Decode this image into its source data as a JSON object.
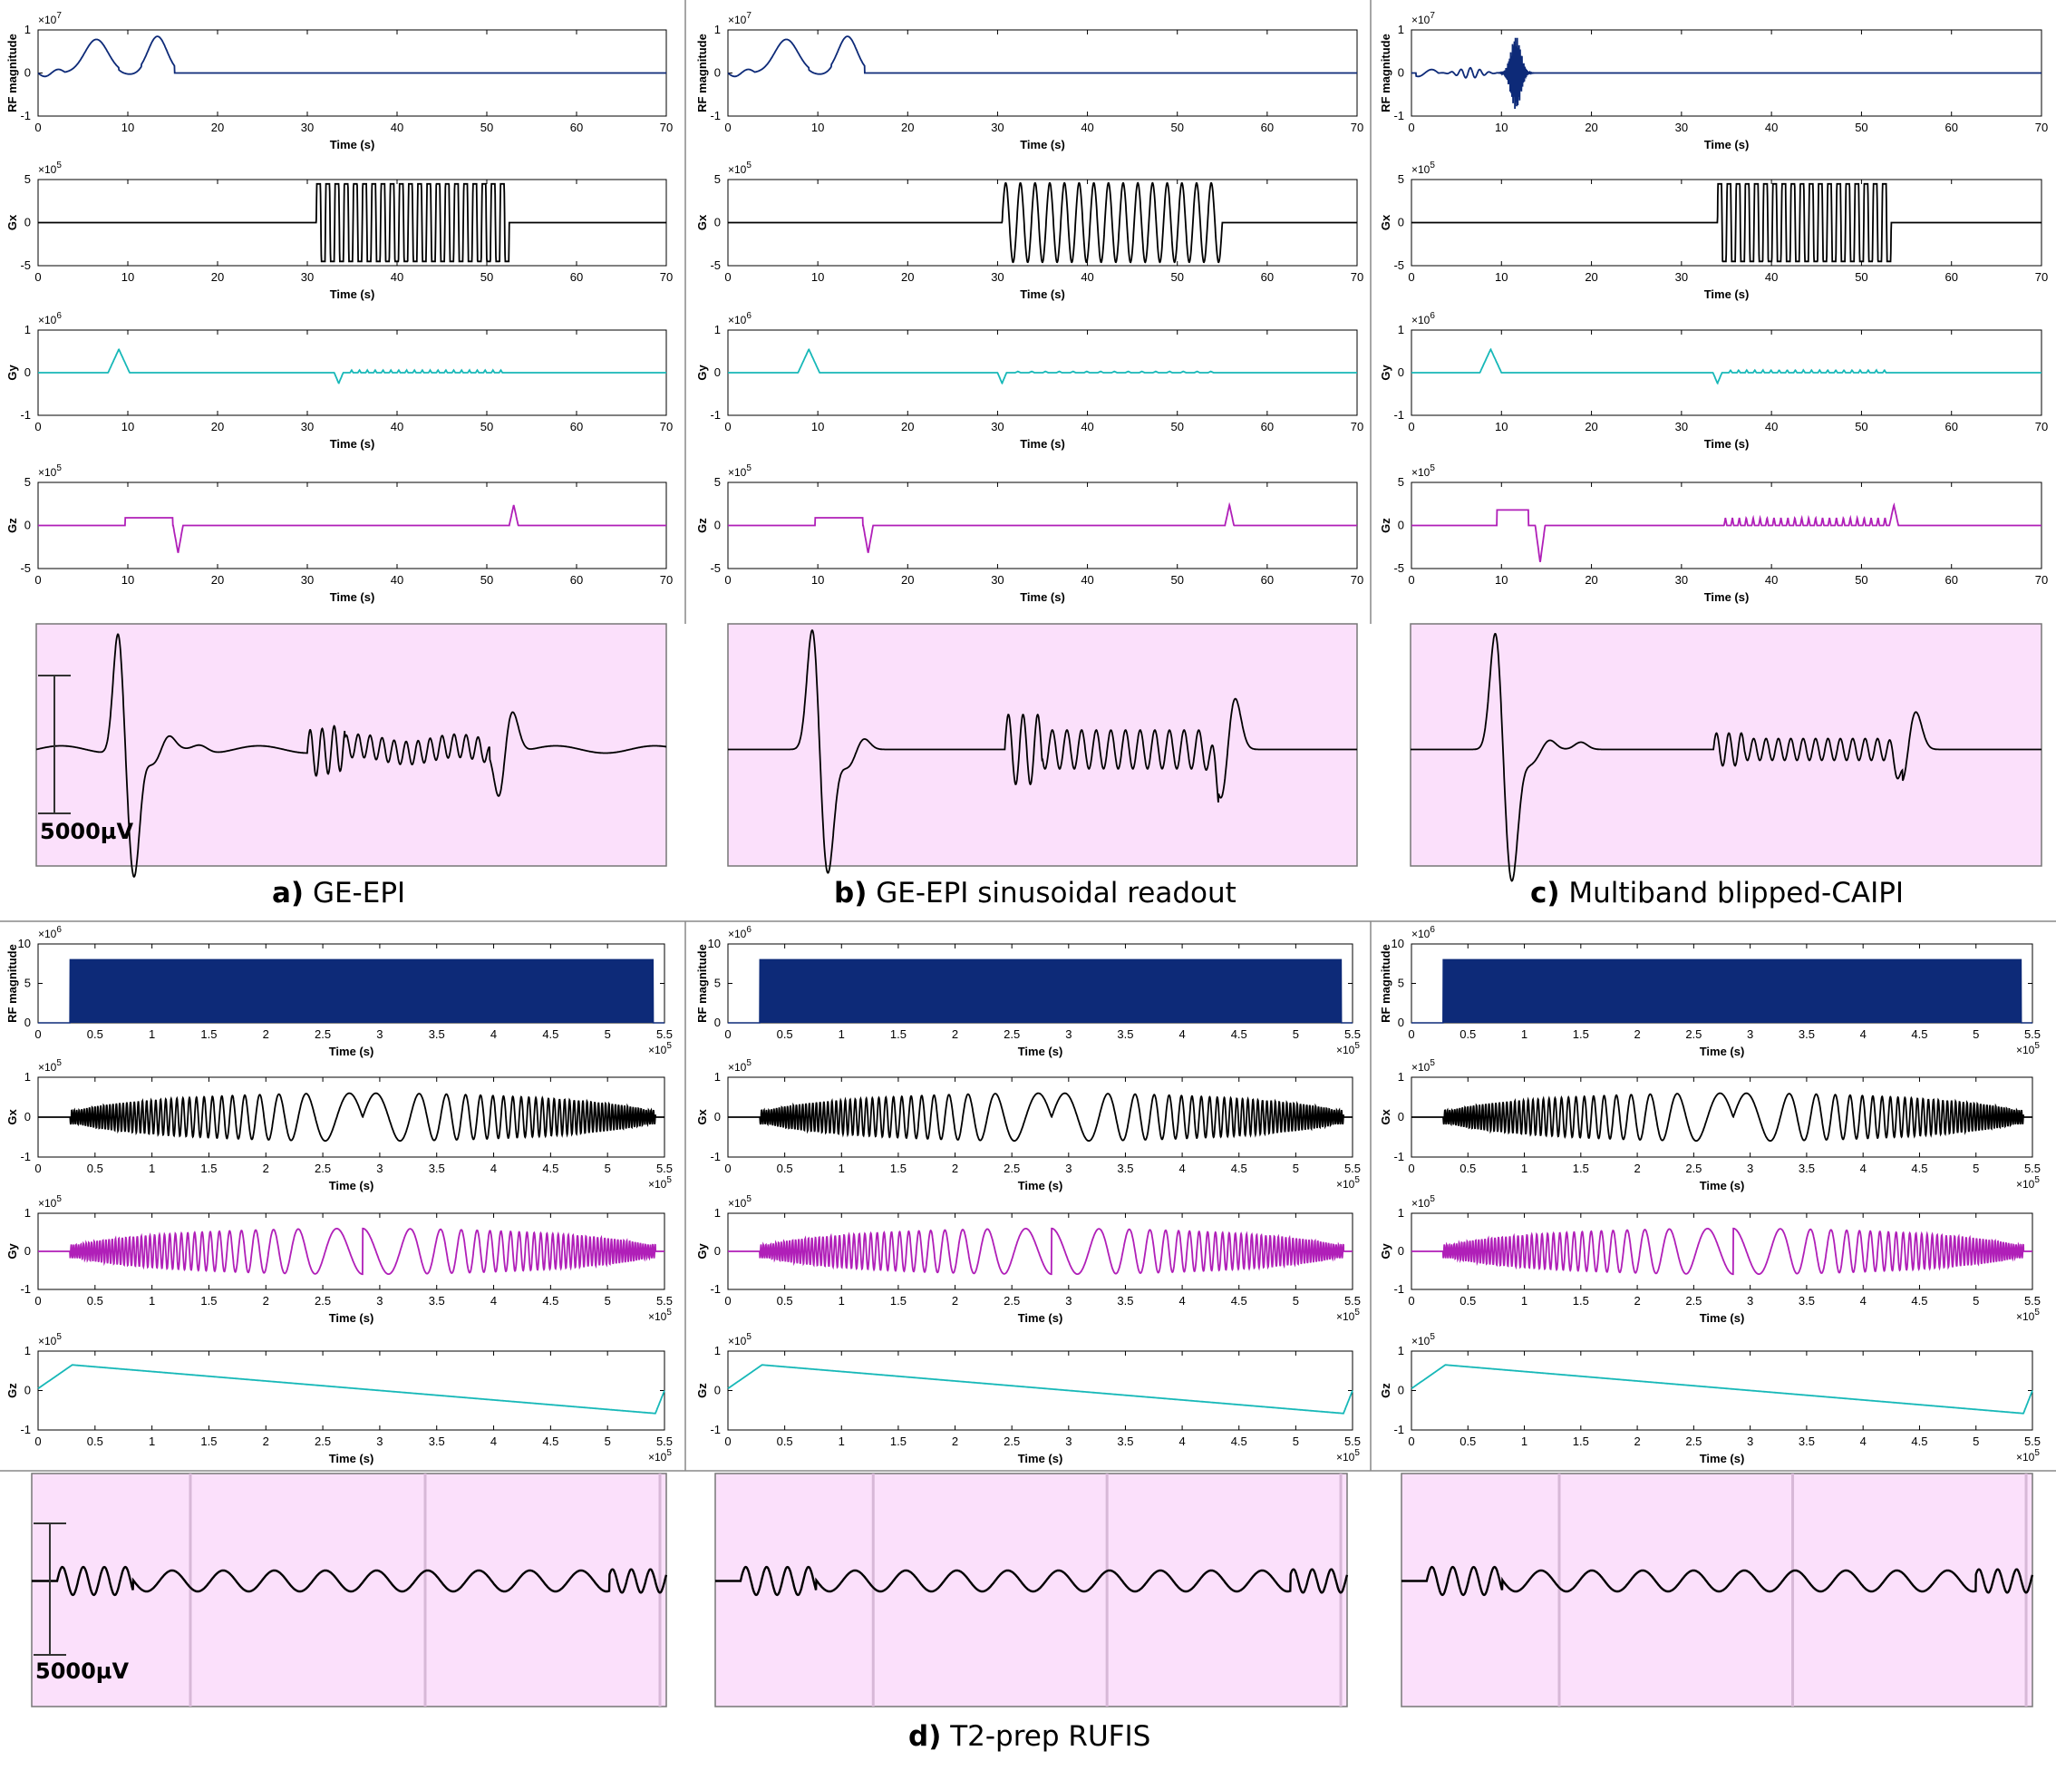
{
  "captions": {
    "a": {
      "letter": "a)",
      "text": " GE-EPI"
    },
    "b": {
      "letter": "b)",
      "text": " GE-EPI sinusoidal readout"
    },
    "c": {
      "letter": "c)",
      "text": " Multiband blipped-CAIPI"
    },
    "d": {
      "letter": "d)",
      "text": " T2-prep RUFIS"
    }
  },
  "scale_bar_label": "5000µV",
  "colors": {
    "rf": "#0d2a78",
    "gx": "#000000",
    "gy": "#17b8b8",
    "gz": "#b01fb8",
    "ecg_bg": "#fbe0fb",
    "ecg_line": "#000000"
  },
  "chart_data": [
    {
      "type": "line",
      "panel": "a",
      "ylabel": "RF magnitude",
      "xlabel": "Time (s)",
      "y_exponent": "×10^7",
      "xlim": [
        0,
        70
      ],
      "ylim": [
        -1,
        1
      ],
      "xticks": [
        0,
        10,
        20,
        30,
        40,
        50,
        60,
        70
      ],
      "yticks": [
        -1,
        0,
        1
      ],
      "series_color": "rf",
      "waveform": "rf_two_lobes",
      "params": {
        "lobes": [
          6.5,
          13.3
        ],
        "end": 15.2
      }
    },
    {
      "type": "line",
      "panel": "a",
      "ylabel": "Gx",
      "xlabel": "Time (s)",
      "y_exponent": "×10^5",
      "xlim": [
        0,
        70
      ],
      "ylim": [
        -5,
        5
      ],
      "xticks": [
        0,
        10,
        20,
        30,
        40,
        50,
        60,
        70
      ],
      "yticks": [
        -5,
        0,
        5
      ],
      "series_color": "gx",
      "waveform": "epi_readout",
      "params": {
        "start": 31,
        "end": 52.5,
        "amp": 4.5,
        "cycles": 21
      }
    },
    {
      "type": "line",
      "panel": "a",
      "ylabel": "Gy",
      "xlabel": "Time (s)",
      "y_exponent": "×10^6",
      "xlim": [
        0,
        70
      ],
      "ylim": [
        -1,
        1
      ],
      "xticks": [
        0,
        10,
        20,
        30,
        40,
        50,
        60,
        70
      ],
      "yticks": [
        -1,
        0,
        1
      ],
      "series_color": "gy",
      "waveform": "gy_blips",
      "params": {
        "bump_center": 9,
        "bump_amp": 0.55,
        "neg_center": 33.5,
        "blip_start": 34.5,
        "blip_end": 52,
        "blips": 20,
        "blip_amp": 0.06
      }
    },
    {
      "type": "line",
      "panel": "a",
      "ylabel": "Gz",
      "xlabel": "Time (s)",
      "y_exponent": "×10^5",
      "xlim": [
        0,
        70
      ],
      "ylim": [
        -5,
        5
      ],
      "xticks": [
        0,
        10,
        20,
        30,
        40,
        50,
        60,
        70
      ],
      "yticks": [
        -5,
        0,
        5
      ],
      "series_color": "gz",
      "waveform": "gz_slice",
      "params": {
        "flat_start": 9.7,
        "flat_end": 15,
        "flat_amp": 0.9,
        "neg_center": 15.6,
        "neg_amp": -3.2,
        "spike_center": 53,
        "spike_amp": 2.4,
        "blips": 0
      }
    },
    {
      "type": "line",
      "panel": "b",
      "ylabel": "RF magnitude",
      "xlabel": "Time (s)",
      "y_exponent": "×10^7",
      "xlim": [
        0,
        70
      ],
      "ylim": [
        -1,
        1
      ],
      "xticks": [
        0,
        10,
        20,
        30,
        40,
        50,
        60,
        70
      ],
      "yticks": [
        -1,
        0,
        1
      ],
      "series_color": "rf",
      "waveform": "rf_two_lobes",
      "params": {
        "lobes": [
          6.5,
          13.3
        ],
        "end": 15.2
      }
    },
    {
      "type": "line",
      "panel": "b",
      "ylabel": "Gx",
      "xlabel": "Time (s)",
      "y_exponent": "×10^5",
      "xlim": [
        0,
        70
      ],
      "ylim": [
        -5,
        5
      ],
      "xticks": [
        0,
        10,
        20,
        30,
        40,
        50,
        60,
        70
      ],
      "yticks": [
        -5,
        0,
        5
      ],
      "series_color": "gx",
      "waveform": "sin_readout",
      "params": {
        "start": 30.5,
        "end": 55,
        "amp": 4.6,
        "cycles": 15
      }
    },
    {
      "type": "line",
      "panel": "b",
      "ylabel": "Gy",
      "xlabel": "Time (s)",
      "y_exponent": "×10^6",
      "xlim": [
        0,
        70
      ],
      "ylim": [
        -1,
        1
      ],
      "xticks": [
        0,
        10,
        20,
        30,
        40,
        50,
        60,
        70
      ],
      "yticks": [
        -1,
        0,
        1
      ],
      "series_color": "gy",
      "waveform": "gy_blips",
      "params": {
        "bump_center": 9,
        "bump_amp": 0.55,
        "neg_center": 30.5,
        "blip_start": 31.5,
        "blip_end": 54.5,
        "blips": 15,
        "blip_amp": 0.03
      }
    },
    {
      "type": "line",
      "panel": "b",
      "ylabel": "Gz",
      "xlabel": "Time (s)",
      "y_exponent": "×10^5",
      "xlim": [
        0,
        70
      ],
      "ylim": [
        -5,
        5
      ],
      "xticks": [
        0,
        10,
        20,
        30,
        40,
        50,
        60,
        70
      ],
      "yticks": [
        -5,
        0,
        5
      ],
      "series_color": "gz",
      "waveform": "gz_slice",
      "params": {
        "flat_start": 9.7,
        "flat_end": 15,
        "flat_amp": 0.9,
        "neg_center": 15.6,
        "neg_amp": -3.2,
        "spike_center": 55.8,
        "spike_amp": 2.4,
        "blips": 0
      }
    },
    {
      "type": "line",
      "panel": "c",
      "ylabel": "RF magnitude",
      "xlabel": "Time (s)",
      "y_exponent": "×10^7",
      "xlim": [
        0,
        70
      ],
      "ylim": [
        -1,
        1
      ],
      "xticks": [
        0,
        10,
        20,
        30,
        40,
        50,
        60,
        70
      ],
      "yticks": [
        -1,
        0,
        1
      ],
      "series_color": "rf",
      "waveform": "rf_multiband",
      "params": {
        "small_center": 6.5,
        "burst_center": 11.6,
        "burst_amp": 0.85
      }
    },
    {
      "type": "line",
      "panel": "c",
      "ylabel": "Gx",
      "xlabel": "Time (s)",
      "y_exponent": "×10^5",
      "xlim": [
        0,
        70
      ],
      "ylim": [
        -5,
        5
      ],
      "xticks": [
        0,
        10,
        20,
        30,
        40,
        50,
        60,
        70
      ],
      "yticks": [
        -5,
        0,
        5
      ],
      "series_color": "gx",
      "waveform": "epi_readout",
      "params": {
        "start": 34,
        "end": 53.3,
        "amp": 4.5,
        "cycles": 19
      }
    },
    {
      "type": "line",
      "panel": "c",
      "ylabel": "Gy",
      "xlabel": "Time (s)",
      "y_exponent": "×10^6",
      "xlim": [
        0,
        70
      ],
      "ylim": [
        -1,
        1
      ],
      "xticks": [
        0,
        10,
        20,
        30,
        40,
        50,
        60,
        70
      ],
      "yticks": [
        -1,
        0,
        1
      ],
      "series_color": "gy",
      "waveform": "gy_blips",
      "params": {
        "bump_center": 8.8,
        "bump_amp": 0.55,
        "neg_center": 34,
        "blip_start": 35,
        "blip_end": 53,
        "blips": 20,
        "blip_amp": 0.06
      }
    },
    {
      "type": "line",
      "panel": "c",
      "ylabel": "Gz",
      "xlabel": "Time (s)",
      "y_exponent": "×10^5",
      "xlim": [
        0,
        70
      ],
      "ylim": [
        -5,
        5
      ],
      "xticks": [
        0,
        10,
        20,
        30,
        40,
        50,
        60,
        70
      ],
      "yticks": [
        -5,
        0,
        5
      ],
      "series_color": "gz",
      "waveform": "gz_slice",
      "params": {
        "flat_start": 9.5,
        "flat_end": 13,
        "flat_amp": 1.8,
        "neg_center": 14.3,
        "neg_amp": -4.3,
        "spike_center": 53.6,
        "spike_amp": 2.4,
        "blips": 24,
        "blip_start": 34.5,
        "blip_end": 53,
        "blip_amp": 0.9
      }
    },
    {
      "type": "line",
      "panel": "d1",
      "ylabel": "RF magnitude",
      "xlabel": "Time (s)",
      "y_exponent": "×10^6",
      "x_exponent": "×10^5",
      "xlim": [
        0,
        5.5
      ],
      "ylim": [
        0,
        10
      ],
      "xticks": [
        0,
        0.5,
        1,
        1.5,
        2,
        2.5,
        3,
        3.5,
        4,
        4.5,
        5,
        5.5
      ],
      "yticks": [
        0,
        5,
        10
      ],
      "series_color": "rf",
      "waveform": "rf_block",
      "params": {
        "start": 0.28,
        "end": 5.4,
        "amp": 8
      }
    },
    {
      "type": "line",
      "panel": "d1",
      "ylabel": "Gx",
      "xlabel": "Time (s)",
      "y_exponent": "×10^5",
      "x_exponent": "×10^5",
      "xlim": [
        0,
        5.5
      ],
      "ylim": [
        -1,
        1
      ],
      "xticks": [
        0,
        0.5,
        1,
        1.5,
        2,
        2.5,
        3,
        3.5,
        4,
        4.5,
        5,
        5.5
      ],
      "yticks": [
        -1,
        0,
        1
      ],
      "series_color": "gx",
      "waveform": "spiral",
      "params": {
        "start": 0.28,
        "end": 5.42,
        "amp": 0.6,
        "phase": 0
      }
    },
    {
      "type": "line",
      "panel": "d1",
      "ylabel": "Gy",
      "xlabel": "Time (s)",
      "y_exponent": "×10^5",
      "x_exponent": "×10^5",
      "xlim": [
        0,
        5.5
      ],
      "ylim": [
        -1,
        1
      ],
      "xticks": [
        0,
        0.5,
        1,
        1.5,
        2,
        2.5,
        3,
        3.5,
        4,
        4.5,
        5,
        5.5
      ],
      "yticks": [
        -1,
        0,
        1
      ],
      "series_color": "gz",
      "waveform": "spiral",
      "params": {
        "start": 0.28,
        "end": 5.42,
        "amp": 0.6,
        "phase": 1.57
      }
    },
    {
      "type": "line",
      "panel": "d1",
      "ylabel": "Gz",
      "xlabel": "Time (s)",
      "y_exponent": "×10^5",
      "x_exponent": "×10^5",
      "xlim": [
        0,
        5.5
      ],
      "ylim": [
        -1,
        1
      ],
      "xticks": [
        0,
        0.5,
        1,
        1.5,
        2,
        2.5,
        3,
        3.5,
        4,
        4.5,
        5,
        5.5
      ],
      "yticks": [
        -1,
        0,
        1
      ],
      "series_color": "gy",
      "waveform": "ramp",
      "params": {
        "start_val": 0.05,
        "peak_t": 0.3,
        "peak_val": 0.65,
        "end_t": 5.42,
        "end_val": -0.58
      }
    },
    {
      "type": "line",
      "panel": "d2",
      "ylabel": "RF magnitude",
      "xlabel": "Time (s)",
      "y_exponent": "×10^6",
      "x_exponent": "×10^5",
      "xlim": [
        0,
        5.5
      ],
      "ylim": [
        0,
        10
      ],
      "xticks": [
        0,
        0.5,
        1,
        1.5,
        2,
        2.5,
        3,
        3.5,
        4,
        4.5,
        5,
        5.5
      ],
      "yticks": [
        0,
        5,
        10
      ],
      "series_color": "rf",
      "waveform": "rf_block",
      "params": {
        "start": 0.28,
        "end": 5.4,
        "amp": 8
      }
    },
    {
      "type": "line",
      "panel": "d2",
      "ylabel": "Gx",
      "xlabel": "Time (s)",
      "y_exponent": "×10^5",
      "x_exponent": "×10^5",
      "xlim": [
        0,
        5.5
      ],
      "ylim": [
        -1,
        1
      ],
      "xticks": [
        0,
        0.5,
        1,
        1.5,
        2,
        2.5,
        3,
        3.5,
        4,
        4.5,
        5,
        5.5
      ],
      "yticks": [
        -1,
        0,
        1
      ],
      "series_color": "gx",
      "waveform": "spiral",
      "params": {
        "start": 0.28,
        "end": 5.42,
        "amp": 0.6,
        "phase": 0
      }
    },
    {
      "type": "line",
      "panel": "d2",
      "ylabel": "Gy",
      "xlabel": "Time (s)",
      "y_exponent": "×10^5",
      "x_exponent": "×10^5",
      "xlim": [
        0,
        5.5
      ],
      "ylim": [
        -1,
        1
      ],
      "xticks": [
        0,
        0.5,
        1,
        1.5,
        2,
        2.5,
        3,
        3.5,
        4,
        4.5,
        5,
        5.5
      ],
      "yticks": [
        -1,
        0,
        1
      ],
      "series_color": "gz",
      "waveform": "spiral",
      "params": {
        "start": 0.28,
        "end": 5.42,
        "amp": 0.6,
        "phase": 1.57
      }
    },
    {
      "type": "line",
      "panel": "d2",
      "ylabel": "Gz",
      "xlabel": "Time (s)",
      "y_exponent": "×10^5",
      "x_exponent": "×10^5",
      "xlim": [
        0,
        5.5
      ],
      "ylim": [
        -1,
        1
      ],
      "xticks": [
        0,
        0.5,
        1,
        1.5,
        2,
        2.5,
        3,
        3.5,
        4,
        4.5,
        5,
        5.5
      ],
      "yticks": [
        -1,
        0,
        1
      ],
      "series_color": "gy",
      "waveform": "ramp",
      "params": {
        "start_val": 0.05,
        "peak_t": 0.3,
        "peak_val": 0.65,
        "end_t": 5.42,
        "end_val": -0.58
      }
    },
    {
      "type": "line",
      "panel": "d3",
      "ylabel": "RF magnitude",
      "xlabel": "Time (s)",
      "y_exponent": "×10^6",
      "x_exponent": "×10^5",
      "xlim": [
        0,
        5.5
      ],
      "ylim": [
        0,
        10
      ],
      "xticks": [
        0,
        0.5,
        1,
        1.5,
        2,
        2.5,
        3,
        3.5,
        4,
        4.5,
        5,
        5.5
      ],
      "yticks": [
        0,
        5,
        10
      ],
      "series_color": "rf",
      "waveform": "rf_block",
      "params": {
        "start": 0.28,
        "end": 5.4,
        "amp": 8
      }
    },
    {
      "type": "line",
      "panel": "d3",
      "ylabel": "Gx",
      "xlabel": "Time (s)",
      "y_exponent": "×10^5",
      "x_exponent": "×10^5",
      "xlim": [
        0,
        5.5
      ],
      "ylim": [
        -1,
        1
      ],
      "xticks": [
        0,
        0.5,
        1,
        1.5,
        2,
        2.5,
        3,
        3.5,
        4,
        4.5,
        5,
        5.5
      ],
      "yticks": [
        -1,
        0,
        1
      ],
      "series_color": "gx",
      "waveform": "spiral",
      "params": {
        "start": 0.28,
        "end": 5.42,
        "amp": 0.6,
        "phase": 0
      }
    },
    {
      "type": "line",
      "panel": "d3",
      "ylabel": "Gy",
      "xlabel": "Time (s)",
      "y_exponent": "×10^5",
      "x_exponent": "×10^5",
      "xlim": [
        0,
        5.5
      ],
      "ylim": [
        -1,
        1
      ],
      "xticks": [
        0,
        0.5,
        1,
        1.5,
        2,
        2.5,
        3,
        3.5,
        4,
        4.5,
        5,
        5.5
      ],
      "yticks": [
        -1,
        0,
        1
      ],
      "series_color": "gz",
      "waveform": "spiral",
      "params": {
        "start": 0.28,
        "end": 5.42,
        "amp": 0.6,
        "phase": 1.57
      }
    },
    {
      "type": "line",
      "panel": "d3",
      "ylabel": "Gz",
      "xlabel": "Time (s)",
      "y_exponent": "×10^5",
      "x_exponent": "×10^5",
      "xlim": [
        0,
        5.5
      ],
      "ylim": [
        -1,
        1
      ],
      "xticks": [
        0,
        0.5,
        1,
        1.5,
        2,
        2.5,
        3,
        3.5,
        4,
        4.5,
        5,
        5.5
      ],
      "yticks": [
        -1,
        0,
        1
      ],
      "series_color": "gy",
      "waveform": "ramp",
      "params": {
        "start_val": 0.05,
        "peak_t": 0.3,
        "peak_val": 0.65,
        "end_t": 5.42,
        "end_val": -0.58
      }
    }
  ],
  "ecg_traces": [
    {
      "panel": "a",
      "waveform": "ecg_epi",
      "scale_bar": true
    },
    {
      "panel": "b",
      "waveform": "ecg_epi_sin",
      "scale_bar": false
    },
    {
      "panel": "c",
      "waveform": "ecg_mb",
      "scale_bar": false
    },
    {
      "panel": "d1",
      "waveform": "ecg_spiral",
      "scale_bar": true
    },
    {
      "panel": "d2",
      "waveform": "ecg_spiral",
      "scale_bar": false
    },
    {
      "panel": "d3",
      "waveform": "ecg_spiral",
      "scale_bar": false
    }
  ]
}
